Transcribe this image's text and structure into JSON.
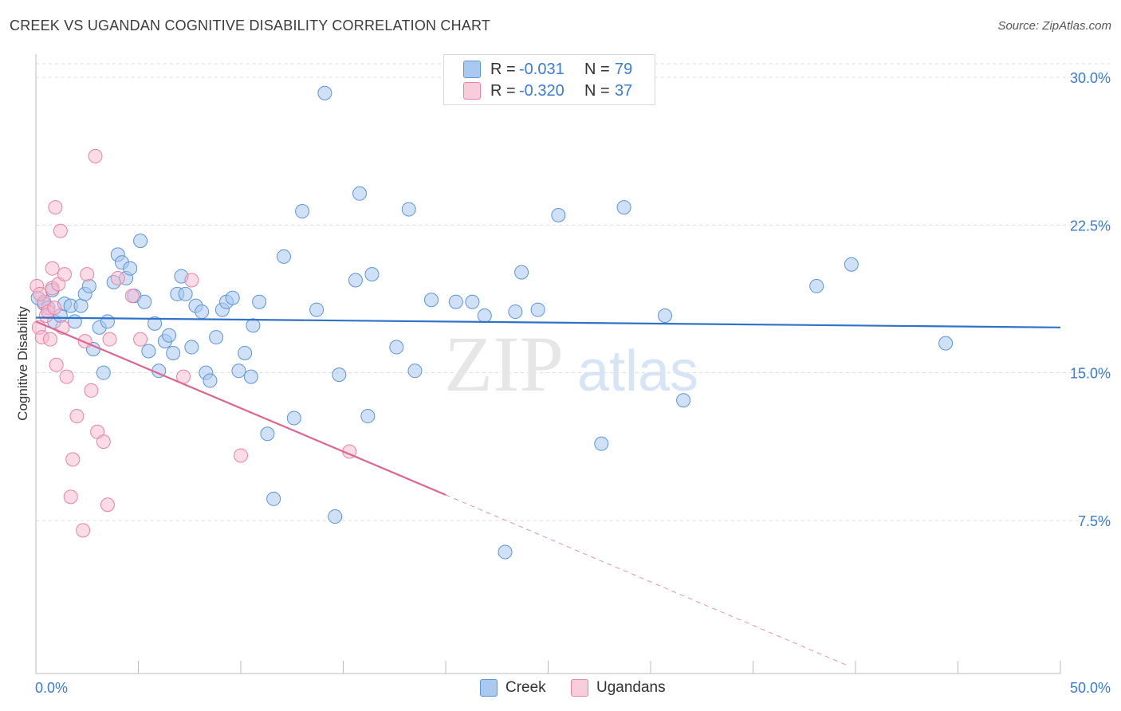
{
  "header": {
    "title": "CREEK VS UGANDAN COGNITIVE DISABILITY CORRELATION CHART",
    "source": "Source: ZipAtlas.com"
  },
  "watermark": {
    "zip": "ZIP",
    "atlas": "atlas"
  },
  "stats_legend": {
    "rows": [
      {
        "series": "Creek",
        "r_label": "R =",
        "r_value": "-0.031",
        "n_label": "N =",
        "n_value": "79",
        "color": "#a9c9f0"
      },
      {
        "series": "Ugandans",
        "r_label": "R =",
        "r_value": "-0.320",
        "n_label": "N =",
        "n_value": "37",
        "color": "#f7b8cb"
      }
    ]
  },
  "bottom_legend": [
    {
      "label": "Creek",
      "color": "#a9c9f0"
    },
    {
      "label": "Ugandans",
      "color": "#f7b8cb"
    }
  ],
  "chart_data": {
    "type": "scatter",
    "title": "CREEK VS UGANDAN COGNITIVE DISABILITY CORRELATION CHART",
    "xlabel": "",
    "ylabel": "Cognitive Disability",
    "xlim": [
      0,
      50
    ],
    "ylim": [
      0,
      31
    ],
    "x_tick_labels": [
      "0.0%",
      "50.0%"
    ],
    "y_ticks": [
      7.5,
      15.0,
      22.5,
      30.0
    ],
    "y_tick_labels": [
      "7.5%",
      "15.0%",
      "22.5%",
      "30.0%"
    ],
    "grid": true,
    "colors": {
      "creek_fill": "#a9c9f0",
      "creek_stroke": "#5b95d9",
      "creek_line": "#2f72c9",
      "ugandans_fill": "#f7b8cb",
      "ugandans_stroke": "#e883a5",
      "ugandans_line": "#e0648f",
      "axis_text": "#3a7bd5",
      "grid": "#dddddd"
    },
    "series": [
      {
        "name": "Creek",
        "trend": {
          "x": [
            0,
            50
          ],
          "y": [
            17.8,
            17.3
          ]
        },
        "points": [
          [
            0.1,
            18.8
          ],
          [
            0.4,
            18.5
          ],
          [
            0.6,
            18.3
          ],
          [
            0.8,
            19.2
          ],
          [
            0.9,
            17.6
          ],
          [
            1.2,
            17.9
          ],
          [
            1.4,
            18.5
          ],
          [
            1.7,
            18.4
          ],
          [
            1.9,
            17.6
          ],
          [
            2.2,
            18.4
          ],
          [
            2.4,
            19.0
          ],
          [
            2.6,
            19.4
          ],
          [
            2.8,
            16.2
          ],
          [
            3.1,
            17.3
          ],
          [
            3.3,
            15.0
          ],
          [
            3.5,
            17.6
          ],
          [
            3.8,
            19.6
          ],
          [
            4.0,
            21.0
          ],
          [
            4.2,
            20.6
          ],
          [
            4.4,
            19.8
          ],
          [
            4.6,
            20.3
          ],
          [
            4.8,
            18.9
          ],
          [
            5.1,
            21.7
          ],
          [
            5.3,
            18.6
          ],
          [
            5.5,
            16.1
          ],
          [
            5.8,
            17.5
          ],
          [
            6.0,
            15.1
          ],
          [
            6.3,
            16.6
          ],
          [
            6.5,
            16.9
          ],
          [
            6.7,
            16.0
          ],
          [
            6.9,
            19.0
          ],
          [
            7.1,
            19.9
          ],
          [
            7.3,
            19.0
          ],
          [
            7.6,
            16.3
          ],
          [
            7.8,
            18.4
          ],
          [
            8.1,
            18.1
          ],
          [
            8.3,
            15.0
          ],
          [
            8.5,
            14.6
          ],
          [
            8.8,
            16.8
          ],
          [
            9.1,
            18.2
          ],
          [
            9.3,
            18.6
          ],
          [
            9.6,
            18.8
          ],
          [
            9.9,
            15.1
          ],
          [
            10.2,
            16.0
          ],
          [
            10.5,
            14.8
          ],
          [
            10.6,
            17.4
          ],
          [
            10.9,
            18.6
          ],
          [
            11.3,
            11.9
          ],
          [
            11.6,
            8.6
          ],
          [
            12.1,
            20.9
          ],
          [
            12.6,
            12.7
          ],
          [
            13.0,
            23.2
          ],
          [
            13.7,
            18.2
          ],
          [
            14.1,
            29.2
          ],
          [
            14.6,
            7.7
          ],
          [
            14.8,
            14.9
          ],
          [
            15.6,
            19.7
          ],
          [
            15.8,
            24.1
          ],
          [
            16.2,
            12.8
          ],
          [
            16.4,
            20.0
          ],
          [
            17.6,
            16.3
          ],
          [
            18.2,
            23.3
          ],
          [
            18.5,
            15.1
          ],
          [
            19.3,
            18.7
          ],
          [
            20.5,
            18.6
          ],
          [
            21.3,
            18.6
          ],
          [
            21.9,
            17.9
          ],
          [
            22.9,
            5.9
          ],
          [
            23.4,
            18.1
          ],
          [
            23.7,
            20.1
          ],
          [
            24.5,
            18.2
          ],
          [
            25.5,
            23.0
          ],
          [
            27.6,
            11.4
          ],
          [
            28.7,
            23.4
          ],
          [
            30.7,
            17.9
          ],
          [
            31.6,
            13.6
          ],
          [
            38.1,
            19.4
          ],
          [
            39.8,
            20.5
          ],
          [
            44.4,
            16.5
          ]
        ]
      },
      {
        "name": "Ugandans",
        "trend": {
          "x": [
            0,
            20
          ],
          "y": [
            17.6,
            8.8
          ],
          "dashed_extension": {
            "x": [
              20,
              39.7
            ],
            "y": [
              8.8,
              0.1
            ]
          }
        },
        "points": [
          [
            0.05,
            19.4
          ],
          [
            0.15,
            17.3
          ],
          [
            0.3,
            16.8
          ],
          [
            0.4,
            18.6
          ],
          [
            0.5,
            17.9
          ],
          [
            0.6,
            18.1
          ],
          [
            0.7,
            16.7
          ],
          [
            0.8,
            19.3
          ],
          [
            0.8,
            20.3
          ],
          [
            0.9,
            18.3
          ],
          [
            0.95,
            23.4
          ],
          [
            1.0,
            15.4
          ],
          [
            1.1,
            19.5
          ],
          [
            1.2,
            22.2
          ],
          [
            1.3,
            17.3
          ],
          [
            1.4,
            20.0
          ],
          [
            1.5,
            14.8
          ],
          [
            1.7,
            8.7
          ],
          [
            1.8,
            10.6
          ],
          [
            2.0,
            12.8
          ],
          [
            2.3,
            7.0
          ],
          [
            2.4,
            16.6
          ],
          [
            2.5,
            20.0
          ],
          [
            2.7,
            14.1
          ],
          [
            2.9,
            26.0
          ],
          [
            3.0,
            12.0
          ],
          [
            3.3,
            11.5
          ],
          [
            3.5,
            8.3
          ],
          [
            3.6,
            16.7
          ],
          [
            4.0,
            19.8
          ],
          [
            4.7,
            18.9
          ],
          [
            5.1,
            16.7
          ],
          [
            7.2,
            14.8
          ],
          [
            7.6,
            19.7
          ],
          [
            10.0,
            10.8
          ],
          [
            15.3,
            11.0
          ],
          [
            0.2,
            19.0
          ]
        ]
      }
    ]
  }
}
